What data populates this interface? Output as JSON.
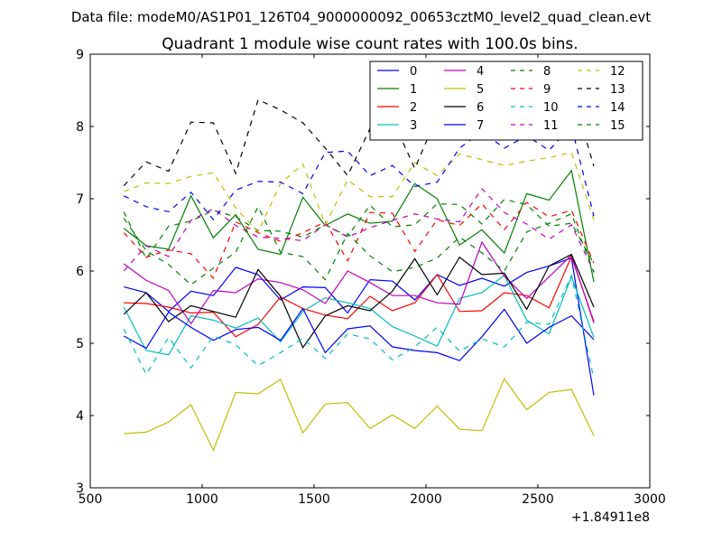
{
  "chart_data": {
    "type": "line",
    "suptitle": "Data file: modeM0/AS1P01_126T04_9000000092_00653cztM0_level2_quad_clean.evt",
    "title": "Quadrant 1 module wise count rates with 100.0s bins.",
    "xlabel": "",
    "ylabel": "",
    "x_offset_label": "+1.84911e8",
    "xlim": [
      500,
      3000
    ],
    "ylim": [
      3,
      9
    ],
    "x_ticks": [
      500,
      1000,
      1500,
      2000,
      2500,
      3000
    ],
    "x_tick_labels": [
      "500",
      "1000",
      "1500",
      "2000",
      "2500",
      "3000"
    ],
    "y_ticks": [
      3,
      4,
      5,
      6,
      7,
      8,
      9
    ],
    "y_tick_labels": [
      "3",
      "4",
      "5",
      "6",
      "7",
      "8",
      "9"
    ],
    "grid": false,
    "legend_position": "top-right",
    "legend_columns": 4,
    "x": [
      650,
      750,
      850,
      950,
      1050,
      1150,
      1250,
      1350,
      1450,
      1550,
      1650,
      1750,
      1850,
      1950,
      2050,
      2150,
      2250,
      2350,
      2450,
      2550,
      2650,
      2750
    ],
    "series": [
      {
        "name": "0",
        "color": "#0000ff",
        "dash": "solid",
        "values": [
          5.78,
          5.7,
          5.44,
          5.72,
          5.66,
          6.05,
          5.95,
          5.6,
          5.78,
          5.77,
          5.42,
          5.88,
          5.86,
          5.6,
          5.95,
          5.8,
          5.9,
          5.79,
          5.98,
          6.07,
          6.18,
          4.28
        ]
      },
      {
        "name": "1",
        "color": "#008000",
        "dash": "solid",
        "values": [
          6.59,
          6.35,
          6.3,
          7.04,
          6.46,
          6.78,
          6.3,
          6.23,
          7.02,
          6.63,
          6.79,
          6.66,
          6.69,
          7.21,
          7.0,
          6.36,
          6.57,
          6.25,
          7.07,
          6.98,
          7.39,
          5.85
        ]
      },
      {
        "name": "2",
        "color": "#ff0000",
        "dash": "solid",
        "values": [
          5.56,
          5.55,
          5.5,
          5.42,
          5.43,
          5.09,
          5.26,
          5.64,
          5.48,
          5.39,
          5.34,
          5.65,
          5.45,
          5.56,
          5.95,
          5.44,
          5.45,
          5.7,
          5.66,
          5.49,
          6.2,
          5.3
        ]
      },
      {
        "name": "3",
        "color": "#00bfbf",
        "dash": "solid",
        "values": [
          5.5,
          4.9,
          4.84,
          5.38,
          5.32,
          5.21,
          5.35,
          5.02,
          5.44,
          5.63,
          5.56,
          5.48,
          5.23,
          5.1,
          4.96,
          5.62,
          5.7,
          5.94,
          5.32,
          5.13,
          5.92,
          5.08
        ]
      },
      {
        "name": "4",
        "color": "#bf00bf",
        "dash": "solid",
        "values": [
          6.1,
          5.87,
          5.73,
          5.27,
          5.73,
          5.7,
          5.89,
          5.84,
          5.74,
          5.55,
          6.0,
          5.84,
          5.66,
          5.66,
          5.56,
          5.54,
          6.4,
          5.93,
          5.62,
          5.92,
          6.22,
          5.28
        ]
      },
      {
        "name": "5",
        "color": "#bfbf00",
        "dash": "solid",
        "values": [
          3.75,
          3.77,
          3.91,
          4.15,
          3.52,
          4.32,
          4.3,
          4.5,
          3.76,
          4.16,
          4.18,
          3.82,
          4.01,
          3.82,
          4.13,
          3.81,
          3.79,
          4.51,
          4.08,
          4.32,
          4.36,
          3.72
        ]
      },
      {
        "name": "6",
        "color": "#000000",
        "dash": "solid",
        "values": [
          5.4,
          5.7,
          5.3,
          5.52,
          5.44,
          5.36,
          6.02,
          5.65,
          4.94,
          5.38,
          5.52,
          5.45,
          5.72,
          6.17,
          5.67,
          6.19,
          5.95,
          5.97,
          5.47,
          6.07,
          6.23,
          5.5
        ]
      },
      {
        "name": "7",
        "color": "#0000ff",
        "dash": "solid",
        "values": [
          5.1,
          4.93,
          5.43,
          5.22,
          5.04,
          5.19,
          5.22,
          5.04,
          5.48,
          4.87,
          5.2,
          5.24,
          4.95,
          4.9,
          4.87,
          4.76,
          5.09,
          5.47,
          5.0,
          5.22,
          5.38,
          5.05
        ]
      },
      {
        "name": "8",
        "color": "#008000",
        "dash": "dashed",
        "values": [
          6.82,
          6.17,
          6.62,
          6.69,
          6.84,
          6.75,
          6.56,
          6.55,
          6.47,
          6.64,
          6.48,
          6.91,
          6.61,
          6.64,
          6.93,
          6.92,
          6.65,
          6.99,
          6.92,
          6.62,
          6.66,
          6.1
        ]
      },
      {
        "name": "9",
        "color": "#ff0000",
        "dash": "dashed",
        "values": [
          6.53,
          6.19,
          6.29,
          6.24,
          5.9,
          6.68,
          6.53,
          6.41,
          6.53,
          6.68,
          6.14,
          6.81,
          6.8,
          6.27,
          6.71,
          6.63,
          6.93,
          6.57,
          6.95,
          6.75,
          6.84,
          6.11
        ]
      },
      {
        "name": "10",
        "color": "#00bfbf",
        "dash": "dashed",
        "values": [
          5.2,
          4.57,
          5.08,
          4.66,
          5.1,
          4.98,
          4.69,
          4.87,
          5.07,
          4.79,
          5.13,
          5.06,
          4.77,
          4.95,
          5.22,
          4.89,
          5.06,
          4.95,
          5.29,
          5.26,
          5.94,
          4.51
        ]
      },
      {
        "name": "11",
        "color": "#bf00bf",
        "dash": "dashed",
        "values": [
          6.0,
          6.35,
          6.2,
          6.7,
          6.86,
          6.63,
          6.47,
          6.45,
          6.42,
          6.64,
          6.47,
          6.6,
          6.7,
          6.79,
          6.72,
          6.68,
          7.14,
          6.81,
          6.65,
          6.44,
          6.64,
          5.99
        ]
      },
      {
        "name": "12",
        "color": "#bfbf00",
        "dash": "dashed",
        "values": [
          7.1,
          7.22,
          7.21,
          7.31,
          7.36,
          6.87,
          6.54,
          7.21,
          7.48,
          6.64,
          7.26,
          7.03,
          7.03,
          7.5,
          7.32,
          7.62,
          7.54,
          7.46,
          7.52,
          7.57,
          7.64,
          6.71
        ]
      },
      {
        "name": "13",
        "color": "#000000",
        "dash": "dashed",
        "values": [
          7.18,
          7.51,
          7.38,
          8.06,
          8.05,
          7.35,
          8.37,
          8.23,
          8.05,
          7.7,
          7.32,
          7.97,
          8.1,
          7.42,
          8.14,
          8.03,
          8.11,
          8.27,
          8.46,
          8.16,
          8.51,
          7.45
        ]
      },
      {
        "name": "14",
        "color": "#0000ff",
        "dash": "dashed",
        "values": [
          7.04,
          6.89,
          6.82,
          7.09,
          6.71,
          7.12,
          7.24,
          7.23,
          7.07,
          7.64,
          7.66,
          7.32,
          7.46,
          7.17,
          7.23,
          7.7,
          7.93,
          7.7,
          7.87,
          7.67,
          8.0,
          6.76
        ]
      },
      {
        "name": "15",
        "color": "#008000",
        "dash": "dashed",
        "values": [
          6.73,
          6.28,
          6.09,
          5.81,
          6.04,
          6.26,
          6.89,
          6.26,
          6.2,
          5.88,
          6.52,
          6.21,
          5.99,
          6.05,
          6.18,
          6.47,
          6.25,
          6.0,
          6.54,
          6.66,
          6.79,
          5.98
        ]
      }
    ]
  }
}
